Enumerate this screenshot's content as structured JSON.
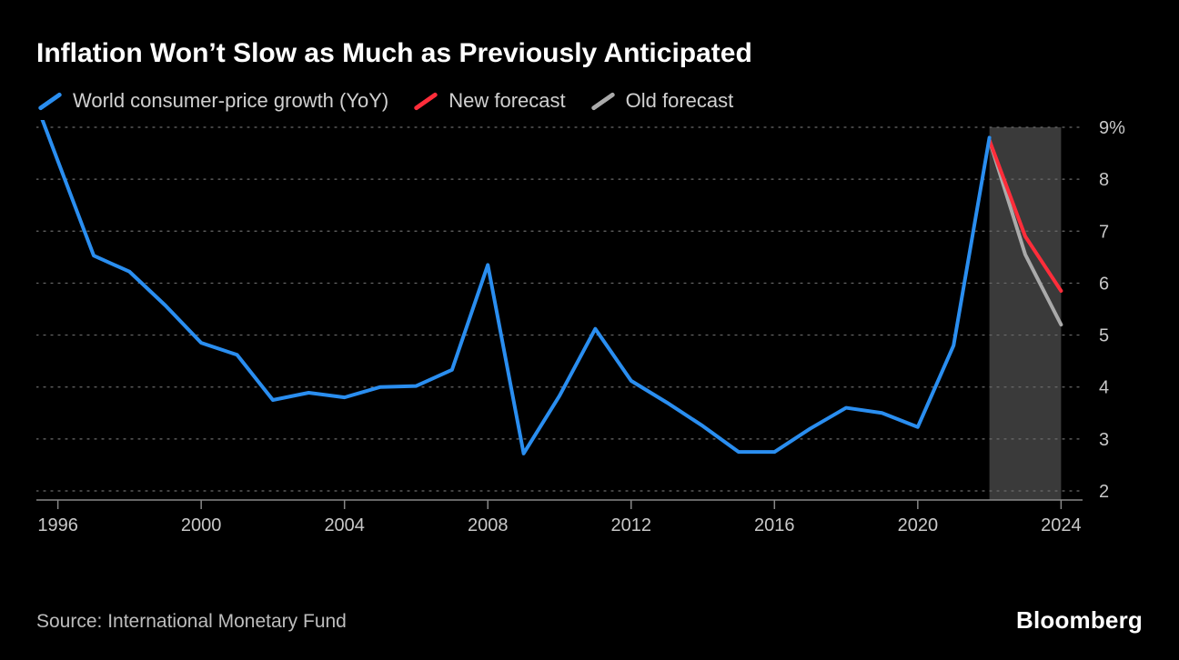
{
  "title": "Inflation Won’t Slow as Much as Previously Anticipated",
  "source": "Source: International Monetary Fund",
  "brand": "Bloomberg",
  "legend": {
    "historical": "World consumer-price growth (YoY)",
    "new_forecast": "New forecast",
    "old_forecast": "Old forecast"
  },
  "chart": {
    "type": "line",
    "background_color": "#000000",
    "grid_color": "#6a6a6a",
    "axis_line_color": "#888888",
    "text_color": "#c8c8c8",
    "forecast_band_color": "#3a3a3a",
    "line_width": 4,
    "x": {
      "min": 1995.4,
      "max": 2024.6,
      "ticks": [
        1996,
        2000,
        2004,
        2008,
        2012,
        2016,
        2020,
        2024
      ]
    },
    "y": {
      "min": 2,
      "max": 9,
      "ticks": [
        2,
        3,
        4,
        5,
        6,
        7,
        8,
        9
      ],
      "unit_label_tick": 9,
      "unit": "%"
    },
    "forecast_band": {
      "x_start": 2022,
      "x_end": 2024
    },
    "series": {
      "historical": {
        "color": "#2a8ef0",
        "points": [
          [
            1995.4,
            9.45
          ],
          [
            1996,
            8.35
          ],
          [
            1997,
            6.53
          ],
          [
            1998,
            6.22
          ],
          [
            1999,
            5.57
          ],
          [
            2000,
            4.85
          ],
          [
            2001,
            4.62
          ],
          [
            2002,
            3.75
          ],
          [
            2003,
            3.89
          ],
          [
            2004,
            3.8
          ],
          [
            2005,
            4.0
          ],
          [
            2006,
            4.02
          ],
          [
            2007,
            4.33
          ],
          [
            2008,
            6.35
          ],
          [
            2009,
            2.72
          ],
          [
            2010,
            3.83
          ],
          [
            2011,
            5.12
          ],
          [
            2012,
            4.12
          ],
          [
            2013,
            3.7
          ],
          [
            2014,
            3.25
          ],
          [
            2015,
            2.75
          ],
          [
            2016,
            2.75
          ],
          [
            2017,
            3.2
          ],
          [
            2018,
            3.6
          ],
          [
            2019,
            3.5
          ],
          [
            2020,
            3.23
          ],
          [
            2021,
            4.8
          ],
          [
            2022,
            8.8
          ]
        ]
      },
      "new_forecast": {
        "color": "#ff2d3a",
        "points": [
          [
            2022,
            8.75
          ],
          [
            2023,
            6.9
          ],
          [
            2024,
            5.85
          ]
        ]
      },
      "old_forecast": {
        "color": "#aaaaaa",
        "points": [
          [
            2022,
            8.75
          ],
          [
            2023,
            6.55
          ],
          [
            2024,
            5.2
          ]
        ]
      }
    }
  }
}
